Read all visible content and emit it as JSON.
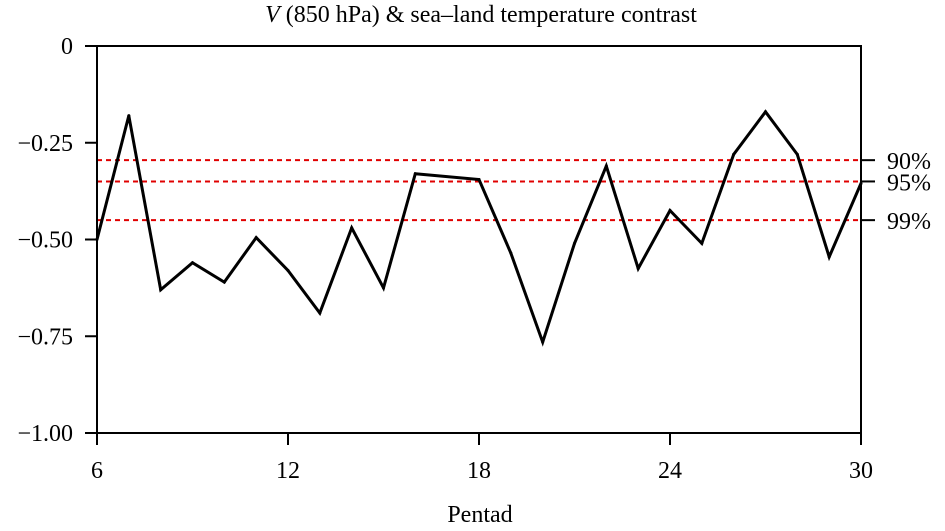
{
  "chart_data": {
    "type": "line",
    "title": {
      "italic_part": "V",
      "rest": " (850 hPa) & sea–land temperature contrast"
    },
    "xlabel": "Pentad",
    "ylabel": "",
    "xlim": [
      6,
      30
    ],
    "ylim": [
      -1.0,
      0
    ],
    "xticks": [
      6,
      12,
      18,
      24,
      30
    ],
    "xtick_labels": [
      "6",
      "12",
      "18",
      "24",
      "30"
    ],
    "yticks": [
      0,
      -0.25,
      -0.5,
      -0.75,
      -1.0
    ],
    "ytick_labels": [
      "0",
      "−0.25",
      "−0.50",
      "−0.75",
      "−1.00"
    ],
    "grid": false,
    "series": [
      {
        "color": "#000000",
        "x": [
          6,
          7,
          8,
          9,
          10,
          11,
          12,
          13,
          14,
          15,
          16,
          18,
          19,
          20,
          21,
          22,
          23,
          24,
          25,
          26,
          27,
          28,
          29,
          30
        ],
        "values": [
          -0.5,
          -0.18,
          -0.63,
          -0.56,
          -0.61,
          -0.495,
          -0.58,
          -0.69,
          -0.47,
          -0.625,
          -0.33,
          -0.345,
          -0.535,
          -0.765,
          -0.51,
          -0.31,
          -0.575,
          -0.425,
          -0.51,
          -0.28,
          -0.17,
          -0.28,
          -0.545,
          -0.355
        ]
      }
    ],
    "reference_lines": [
      {
        "label": "90%",
        "y": -0.295,
        "color": "#e00000",
        "style": "dashed"
      },
      {
        "label": "95%",
        "y": -0.35,
        "color": "#e00000",
        "style": "dashed"
      },
      {
        "label": "99%",
        "y": -0.45,
        "color": "#e00000",
        "style": "dashed"
      }
    ]
  }
}
